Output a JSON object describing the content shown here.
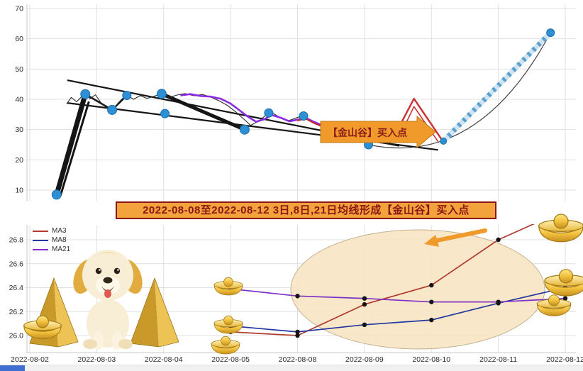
{
  "colors": {
    "grid": "#e0e0e0",
    "spine": "#c8c8c8",
    "axis_text": "#2b2b2b",
    "banner_bg": "#f2a33c",
    "banner_border": "#8b1515",
    "banner_text": "#8b1515",
    "arrow_bg": "#f09a2b",
    "arrow_text": "#8b1a1a",
    "scatter": "#2d8fd4",
    "scatter_edge": "#1c6fae",
    "black_line": "#151515",
    "price_line": "#2a2a2a",
    "ma_purple_top": "#8a2be2",
    "ma_red_top": "#cc2222",
    "zigzag_red": "#cc3030",
    "rally_base": "#cfe3f0",
    "rally_dash": "#5aa0cf",
    "curve_line": "#444444",
    "dot": "#141414",
    "ellipse_fill": "#f7e6c3",
    "ellipse_stroke": "#c3b292",
    "scroll_thumb": "#3f6fd0",
    "scroll_track": "#f1f1f1"
  },
  "dates": [
    "2022-08-02",
    "2022-08-03",
    "2022-08-04",
    "2022-08-05",
    "2022-08-08",
    "2022-08-09",
    "2022-08-10",
    "2022-08-11",
    "2022-08-12"
  ],
  "annotations": {
    "buy_arrow_label": "【金山谷】买入点",
    "banner_text": "2022-08-08至2022-08-12 3日,8日,21日均线形成【金山谷】买入点"
  },
  "decorations": [
    "puppy-dog",
    "gold-pyramid",
    "gold-ingot"
  ],
  "chart_data": [
    {
      "panel": "top",
      "type": "line",
      "title": "",
      "ylim": [
        5,
        70
      ],
      "yticks": [
        10,
        20,
        30,
        40,
        50,
        60,
        70
      ],
      "buy_point_markers": [
        [
          0.4,
          8.5,
          6.5
        ],
        [
          0.83,
          41.7,
          6.5
        ],
        [
          1.23,
          36.5,
          6.5
        ],
        [
          1.45,
          41.3,
          6
        ],
        [
          1.97,
          41.8,
          6.5
        ],
        [
          2.02,
          35.3,
          6
        ],
        [
          3.21,
          30.0,
          6.5
        ],
        [
          3.57,
          35.5,
          6
        ],
        [
          4.09,
          34.5,
          6
        ],
        [
          5.06,
          25.0,
          6
        ],
        [
          6.18,
          26.2,
          4.5
        ],
        [
          7.78,
          62.0,
          5.5
        ]
      ],
      "thick_segments": [
        {
          "points": [
            [
              0.4,
              8.5
            ],
            [
              0.83,
              41.7
            ]
          ],
          "width": 7
        },
        {
          "points": [
            [
              0.46,
              8.3
            ],
            [
              0.88,
              39.0
            ]
          ],
          "width": 3
        },
        {
          "points": [
            [
              0.83,
              41.7
            ],
            [
              1.23,
              36.5
            ],
            [
              1.45,
              41.3
            ]
          ],
          "width": 2.5
        },
        {
          "points": [
            [
              1.97,
              41.8
            ],
            [
              3.21,
              30.0
            ]
          ],
          "width": 5
        }
      ],
      "trendlines": [
        {
          "points": [
            [
              0.56,
              46.3
            ],
            [
              5.52,
              24.6
            ]
          ],
          "width": 2.2
        },
        {
          "points": [
            [
              0.56,
              38.8
            ],
            [
              6.1,
              23.3
            ]
          ],
          "width": 2.2
        }
      ],
      "price_line": [
        [
          0.55,
          38.5
        ],
        [
          0.62,
          40.6
        ],
        [
          0.7,
          39.2
        ],
        [
          0.78,
          41.0
        ],
        [
          0.83,
          41.8
        ],
        [
          0.9,
          40.2
        ],
        [
          0.98,
          41.5
        ],
        [
          1.06,
          39.0
        ],
        [
          1.14,
          37.4
        ],
        [
          1.23,
          36.3
        ],
        [
          1.32,
          38.8
        ],
        [
          1.4,
          40.6
        ],
        [
          1.45,
          41.5
        ],
        [
          1.55,
          40.0
        ],
        [
          1.65,
          41.2
        ],
        [
          1.75,
          40.3
        ],
        [
          1.86,
          41.0
        ],
        [
          1.97,
          41.9
        ],
        [
          2.08,
          40.6
        ],
        [
          2.2,
          41.4
        ],
        [
          2.32,
          41.9
        ],
        [
          2.45,
          41.2
        ],
        [
          2.58,
          41.6
        ],
        [
          2.7,
          40.8
        ],
        [
          2.82,
          39.6
        ],
        [
          2.95,
          38.0
        ],
        [
          3.08,
          35.8
        ],
        [
          3.21,
          33.2
        ],
        [
          3.3,
          31.4
        ],
        [
          3.42,
          32.8
        ],
        [
          3.52,
          34.6
        ],
        [
          3.62,
          35.6
        ],
        [
          3.72,
          34.2
        ],
        [
          3.85,
          32.8
        ],
        [
          3.95,
          33.6
        ],
        [
          4.05,
          34.4
        ],
        [
          4.18,
          33.2
        ],
        [
          4.3,
          31.6
        ],
        [
          4.42,
          30.6
        ],
        [
          4.55,
          31.6
        ],
        [
          4.65,
          30.9
        ]
      ],
      "ma_purple": [
        [
          2.25,
          41.3
        ],
        [
          2.4,
          41.7
        ],
        [
          2.55,
          41.1
        ],
        [
          2.7,
          40.9
        ],
        [
          2.85,
          40.2
        ],
        [
          3.0,
          38.6
        ],
        [
          3.12,
          36.6
        ],
        [
          3.25,
          34.4
        ],
        [
          3.38,
          32.6
        ],
        [
          3.5,
          33.4
        ],
        [
          3.62,
          34.8
        ],
        [
          3.75,
          33.9
        ],
        [
          3.88,
          32.7
        ],
        [
          4.0,
          33.3
        ],
        [
          4.12,
          33.9
        ],
        [
          4.25,
          32.5
        ],
        [
          4.38,
          31.3
        ],
        [
          4.5,
          31.9
        ],
        [
          4.62,
          31.1
        ]
      ],
      "ma_red": [
        [
          4.0,
          33.0
        ],
        [
          4.12,
          33.6
        ],
        [
          4.25,
          32.1
        ],
        [
          4.38,
          30.9
        ],
        [
          4.5,
          31.6
        ],
        [
          4.62,
          30.8
        ]
      ],
      "zigzag_outer": [
        [
          5.42,
          26.8
        ],
        [
          5.74,
          40.2
        ],
        [
          6.17,
          26.2
        ]
      ],
      "zigzag_inner": [
        [
          5.5,
          26.6
        ],
        [
          5.74,
          37.6
        ],
        [
          6.1,
          26.0
        ]
      ],
      "rally_dashed": [
        [
          6.18,
          26.2
        ],
        [
          7.78,
          62.0
        ]
      ],
      "rally_curve": {
        "start": [
          5.06,
          25.0
        ],
        "control": [
          6.7,
          17.5
        ],
        "end": [
          7.78,
          62.0
        ]
      }
    },
    {
      "panel": "bottom",
      "type": "line",
      "ylim": [
        25.95,
        26.9
      ],
      "yticks": [
        26.0,
        26.2,
        26.4,
        26.6,
        26.8
      ],
      "categories": [
        "2022-08-05",
        "2022-08-08",
        "2022-08-09",
        "2022-08-10",
        "2022-08-11",
        "2022-08-12"
      ],
      "x_start_index": 3,
      "series": [
        {
          "name": "MA3",
          "color": "#b03a2e",
          "values": [
            26.03,
            26.0,
            26.26,
            26.42,
            26.8,
            27.05
          ]
        },
        {
          "name": "MA8",
          "color": "#2436a0",
          "values": [
            26.08,
            26.03,
            26.09,
            26.13,
            26.27,
            26.4
          ]
        },
        {
          "name": "MA21",
          "color": "#7d2fc7",
          "values": [
            26.39,
            26.33,
            26.31,
            26.28,
            26.28,
            26.31
          ]
        }
      ],
      "legend_position": "top-left"
    }
  ]
}
